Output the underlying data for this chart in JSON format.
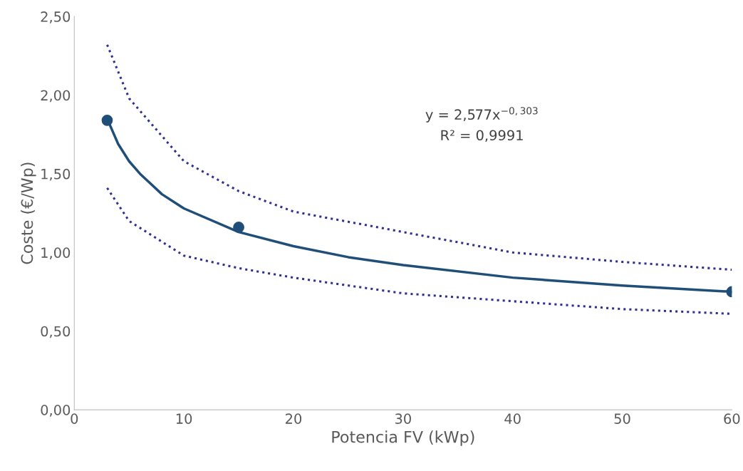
{
  "chart_data": {
    "type": "scatter",
    "xlabel": "Potencia FV (kWp)",
    "ylabel": "Coste (€/Wp)",
    "annotations": [
      "y = 2,577x$^{−0,303}$",
      "R² = 0,9991"
    ],
    "series": [
      {
        "type": "line",
        "line_style": "solid",
        "marker": "none",
        "color": "#1f4e79",
        "x": [
          3,
          4,
          5,
          6,
          8,
          10,
          15,
          20,
          25,
          30,
          40,
          50,
          60
        ],
        "values": [
          1.85,
          1.69,
          1.58,
          1.5,
          1.37,
          1.28,
          1.13,
          1.04,
          0.97,
          0.92,
          0.84,
          0.79,
          0.75
        ]
      },
      {
        "type": "line",
        "line_style": "dotted",
        "marker": "none",
        "color": "#2e3192",
        "x": [
          3,
          5,
          10,
          15,
          20,
          30,
          40,
          50,
          60
        ],
        "values": [
          2.32,
          1.98,
          1.58,
          1.39,
          1.26,
          1.13,
          1.0,
          0.94,
          0.89
        ]
      },
      {
        "type": "line",
        "line_style": "dotted",
        "marker": "none",
        "color": "#2e3192",
        "x": [
          3,
          5,
          10,
          15,
          20,
          30,
          40,
          50,
          60
        ],
        "values": [
          1.41,
          1.2,
          0.98,
          0.9,
          0.84,
          0.74,
          0.69,
          0.64,
          0.61
        ]
      },
      {
        "marker": "circle",
        "color": "#1f4e79",
        "x": [
          3,
          15,
          60
        ],
        "values": [
          1.84,
          1.16,
          0.75
        ]
      }
    ],
    "xlim": [
      0,
      60
    ],
    "xticks": [
      0,
      10,
      20,
      30,
      40,
      50,
      60
    ],
    "ylim": [
      0,
      2.5
    ],
    "yticks": [
      {
        "value": 0,
        "label": "0,00"
      },
      {
        "value": 0.5,
        "label": "0,50"
      },
      {
        "value": 1,
        "label": "1,00"
      },
      {
        "value": 1.5,
        "label": "1,50"
      },
      {
        "value": 2,
        "label": "2,00"
      },
      {
        "value": 2.5,
        "label": "2,50"
      }
    ],
    "grid": false,
    "legend": false
  }
}
